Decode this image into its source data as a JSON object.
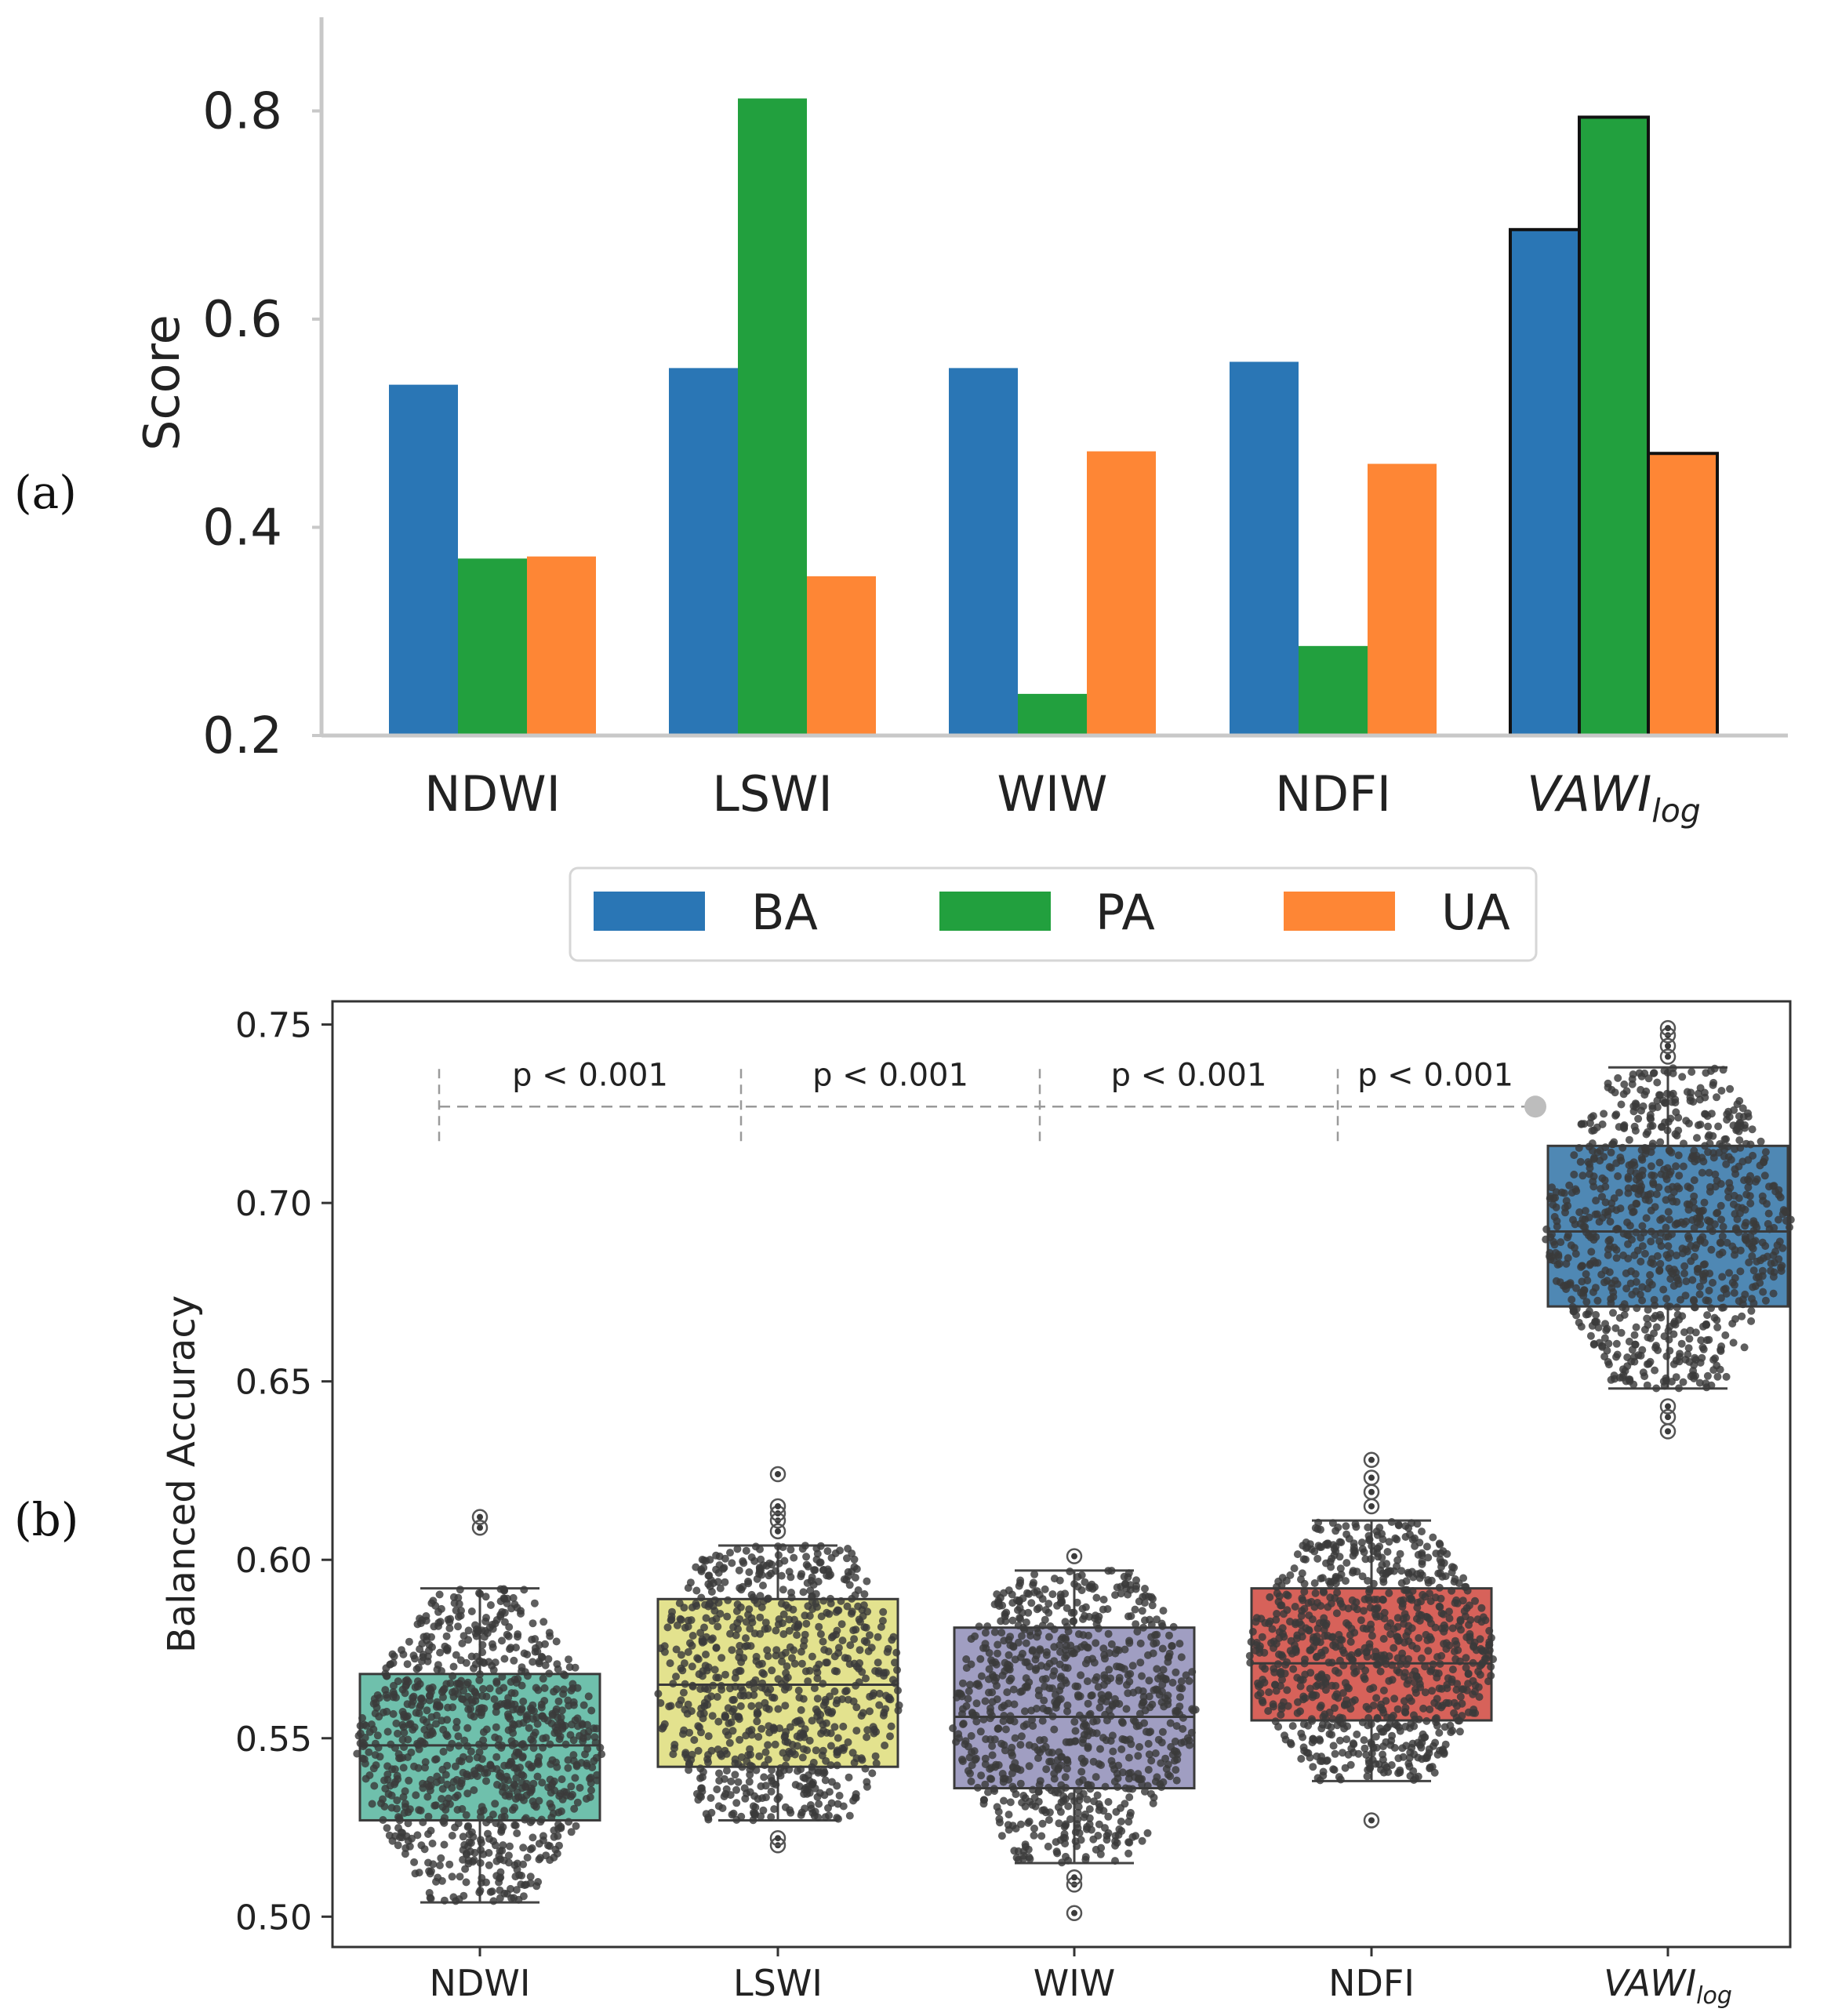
{
  "chart_data": [
    {
      "type": "bar",
      "panel_label": "(a)",
      "categories": [
        "NDWI",
        "LSWI",
        "WIW",
        "NDFI",
        "VAWI"
      ],
      "last_category_subscript": "log",
      "ylabel": "Score",
      "ylim": [
        0.2,
        0.89
      ],
      "yticks": [
        0.2,
        0.4,
        0.6,
        0.8
      ],
      "ytick_labels": [
        "0.2",
        "0.4",
        "0.6",
        "0.8"
      ],
      "grid": false,
      "legend_position": "bottom-center",
      "series": [
        {
          "name": "BA",
          "color": "#2a76b5",
          "values": [
            0.537,
            0.553,
            0.553,
            0.559,
            0.686
          ]
        },
        {
          "name": "PA",
          "color": "#22a03e",
          "values": [
            0.37,
            0.812,
            0.24,
            0.286,
            0.794
          ]
        },
        {
          "name": "UA",
          "color": "#fe8635",
          "values": [
            0.372,
            0.353,
            0.473,
            0.461,
            0.471
          ]
        }
      ],
      "highlighted_category": "VAWI"
    },
    {
      "type": "box",
      "panel_label": "(b)",
      "categories": [
        "NDWI",
        "LSWI",
        "WIW",
        "NDFI",
        "VAWI"
      ],
      "last_category_subscript": "log",
      "ylabel": "Balanced Accuracy",
      "ylim": [
        0.4915,
        0.7565
      ],
      "yticks": [
        0.5,
        0.55,
        0.6,
        0.65,
        0.7,
        0.75
      ],
      "ytick_labels": [
        "0.50",
        "0.55",
        "0.60",
        "0.65",
        "0.70",
        "0.75"
      ],
      "grid": false,
      "boxes": [
        {
          "name": "NDWI",
          "color": "#6fc0ac",
          "q1": 0.527,
          "median": 0.548,
          "q3": 0.568,
          "whisker_low": 0.504,
          "whisker_high": 0.592,
          "outliers": [
            0.609,
            0.612
          ]
        },
        {
          "name": "LSWI",
          "color": "#e3e28e",
          "q1": 0.542,
          "median": 0.565,
          "q3": 0.589,
          "whisker_low": 0.527,
          "whisker_high": 0.604,
          "outliers": [
            0.52,
            0.522,
            0.608,
            0.611,
            0.613,
            0.615,
            0.624
          ]
        },
        {
          "name": "WIW",
          "color": "#a09ec2",
          "q1": 0.536,
          "median": 0.556,
          "q3": 0.581,
          "whisker_low": 0.515,
          "whisker_high": 0.597,
          "outliers": [
            0.501,
            0.509,
            0.511,
            0.601
          ]
        },
        {
          "name": "NDFI",
          "color": "#d7625a",
          "q1": 0.555,
          "median": 0.571,
          "q3": 0.592,
          "whisker_low": 0.538,
          "whisker_high": 0.611,
          "outliers": [
            0.527,
            0.615,
            0.619,
            0.623,
            0.628
          ]
        },
        {
          "name": "VAWI",
          "color": "#4f88b4",
          "q1": 0.671,
          "median": 0.692,
          "q3": 0.716,
          "whisker_low": 0.648,
          "whisker_high": 0.738,
          "outliers": [
            0.636,
            0.64,
            0.643,
            0.741,
            0.744,
            0.747,
            0.749
          ]
        }
      ],
      "annotations": [
        "p < 0.001",
        "p < 0.001",
        "p < 0.001",
        "p < 0.001"
      ],
      "annotation_level": 0.727
    }
  ]
}
